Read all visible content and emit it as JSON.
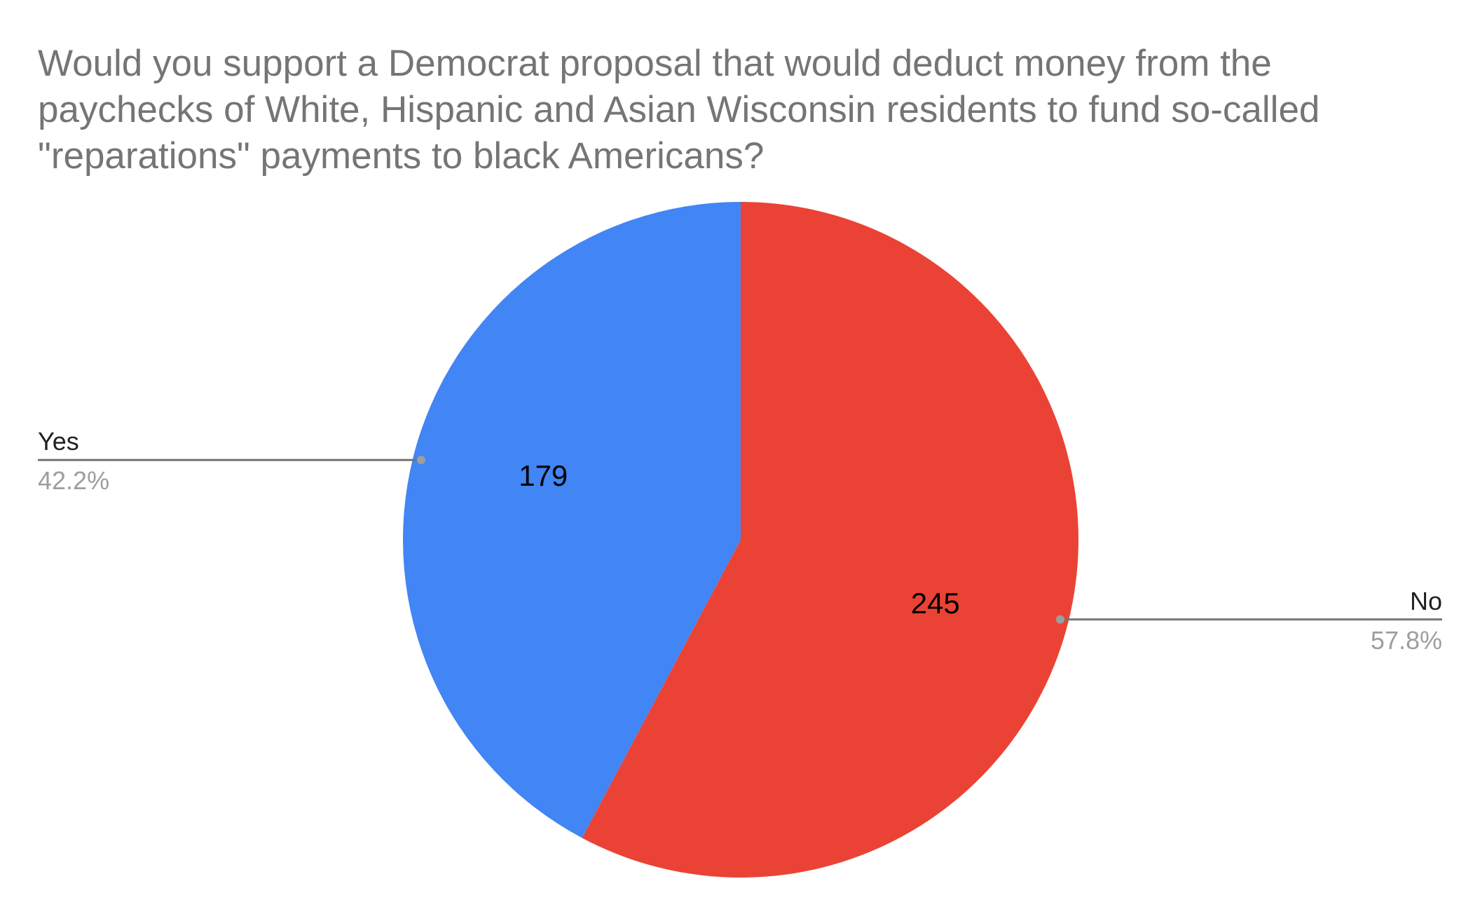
{
  "chart_data": {
    "type": "pie",
    "title": "Would you support a Democrat proposal that would deduct money from the paychecks of White, Hispanic and Asian Wisconsin residents to fund so-called \"reparations\" payments to black Americans?",
    "slices": [
      {
        "name": "No",
        "value": 245,
        "percent_label": "57.8%",
        "color": "#EA4335"
      },
      {
        "name": "Yes",
        "value": 179,
        "percent_label": "42.2%",
        "color": "#4285F4"
      }
    ],
    "start_angle_deg": 0,
    "direction": "clockwise",
    "legend": "none",
    "labels": "outside-with-leader-lines"
  }
}
